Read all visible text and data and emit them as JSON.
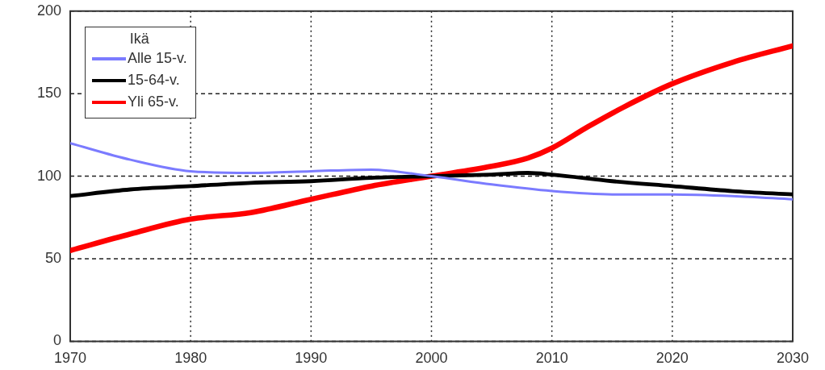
{
  "chart_data": {
    "type": "line",
    "legend_title": "Ikä",
    "legend": "top left",
    "grid": true,
    "marker": "none",
    "line_style": "solid",
    "xlim": [
      1970,
      2030
    ],
    "xticks": [
      1970,
      1980,
      1990,
      2000,
      2010,
      2020,
      2030
    ],
    "ylim": [
      0,
      200
    ],
    "yticks": [
      0,
      50,
      100,
      150,
      200
    ],
    "series": [
      {
        "name": "Alle 15-v.",
        "color": "#7b7bff",
        "x": [
          1970,
          1975,
          1980,
          1985,
          1990,
          1995,
          2000,
          2005,
          2010,
          2015,
          2020,
          2025,
          2030
        ],
        "values": [
          120,
          110,
          103,
          102,
          103,
          104,
          100,
          95,
          91,
          89,
          89,
          88,
          86
        ]
      },
      {
        "name": "15-64-v.",
        "color": "#000000",
        "x": [
          1970,
          1975,
          1980,
          1985,
          1990,
          1995,
          2000,
          2005,
          2008,
          2010,
          2015,
          2020,
          2025,
          2030
        ],
        "values": [
          88,
          92,
          94,
          96,
          97,
          99,
          100,
          101,
          102,
          101,
          97,
          94,
          91,
          89
        ]
      },
      {
        "name": "Yli 65-v.",
        "color": "#ff0000",
        "x": [
          1970,
          1975,
          1980,
          1985,
          1990,
          1995,
          2000,
          2005,
          2008,
          2010,
          2013,
          2016,
          2020,
          2025,
          2030
        ],
        "values": [
          55,
          65,
          74,
          78,
          86,
          94,
          100,
          106,
          111,
          117,
          130,
          142,
          156,
          169,
          179
        ]
      }
    ]
  }
}
